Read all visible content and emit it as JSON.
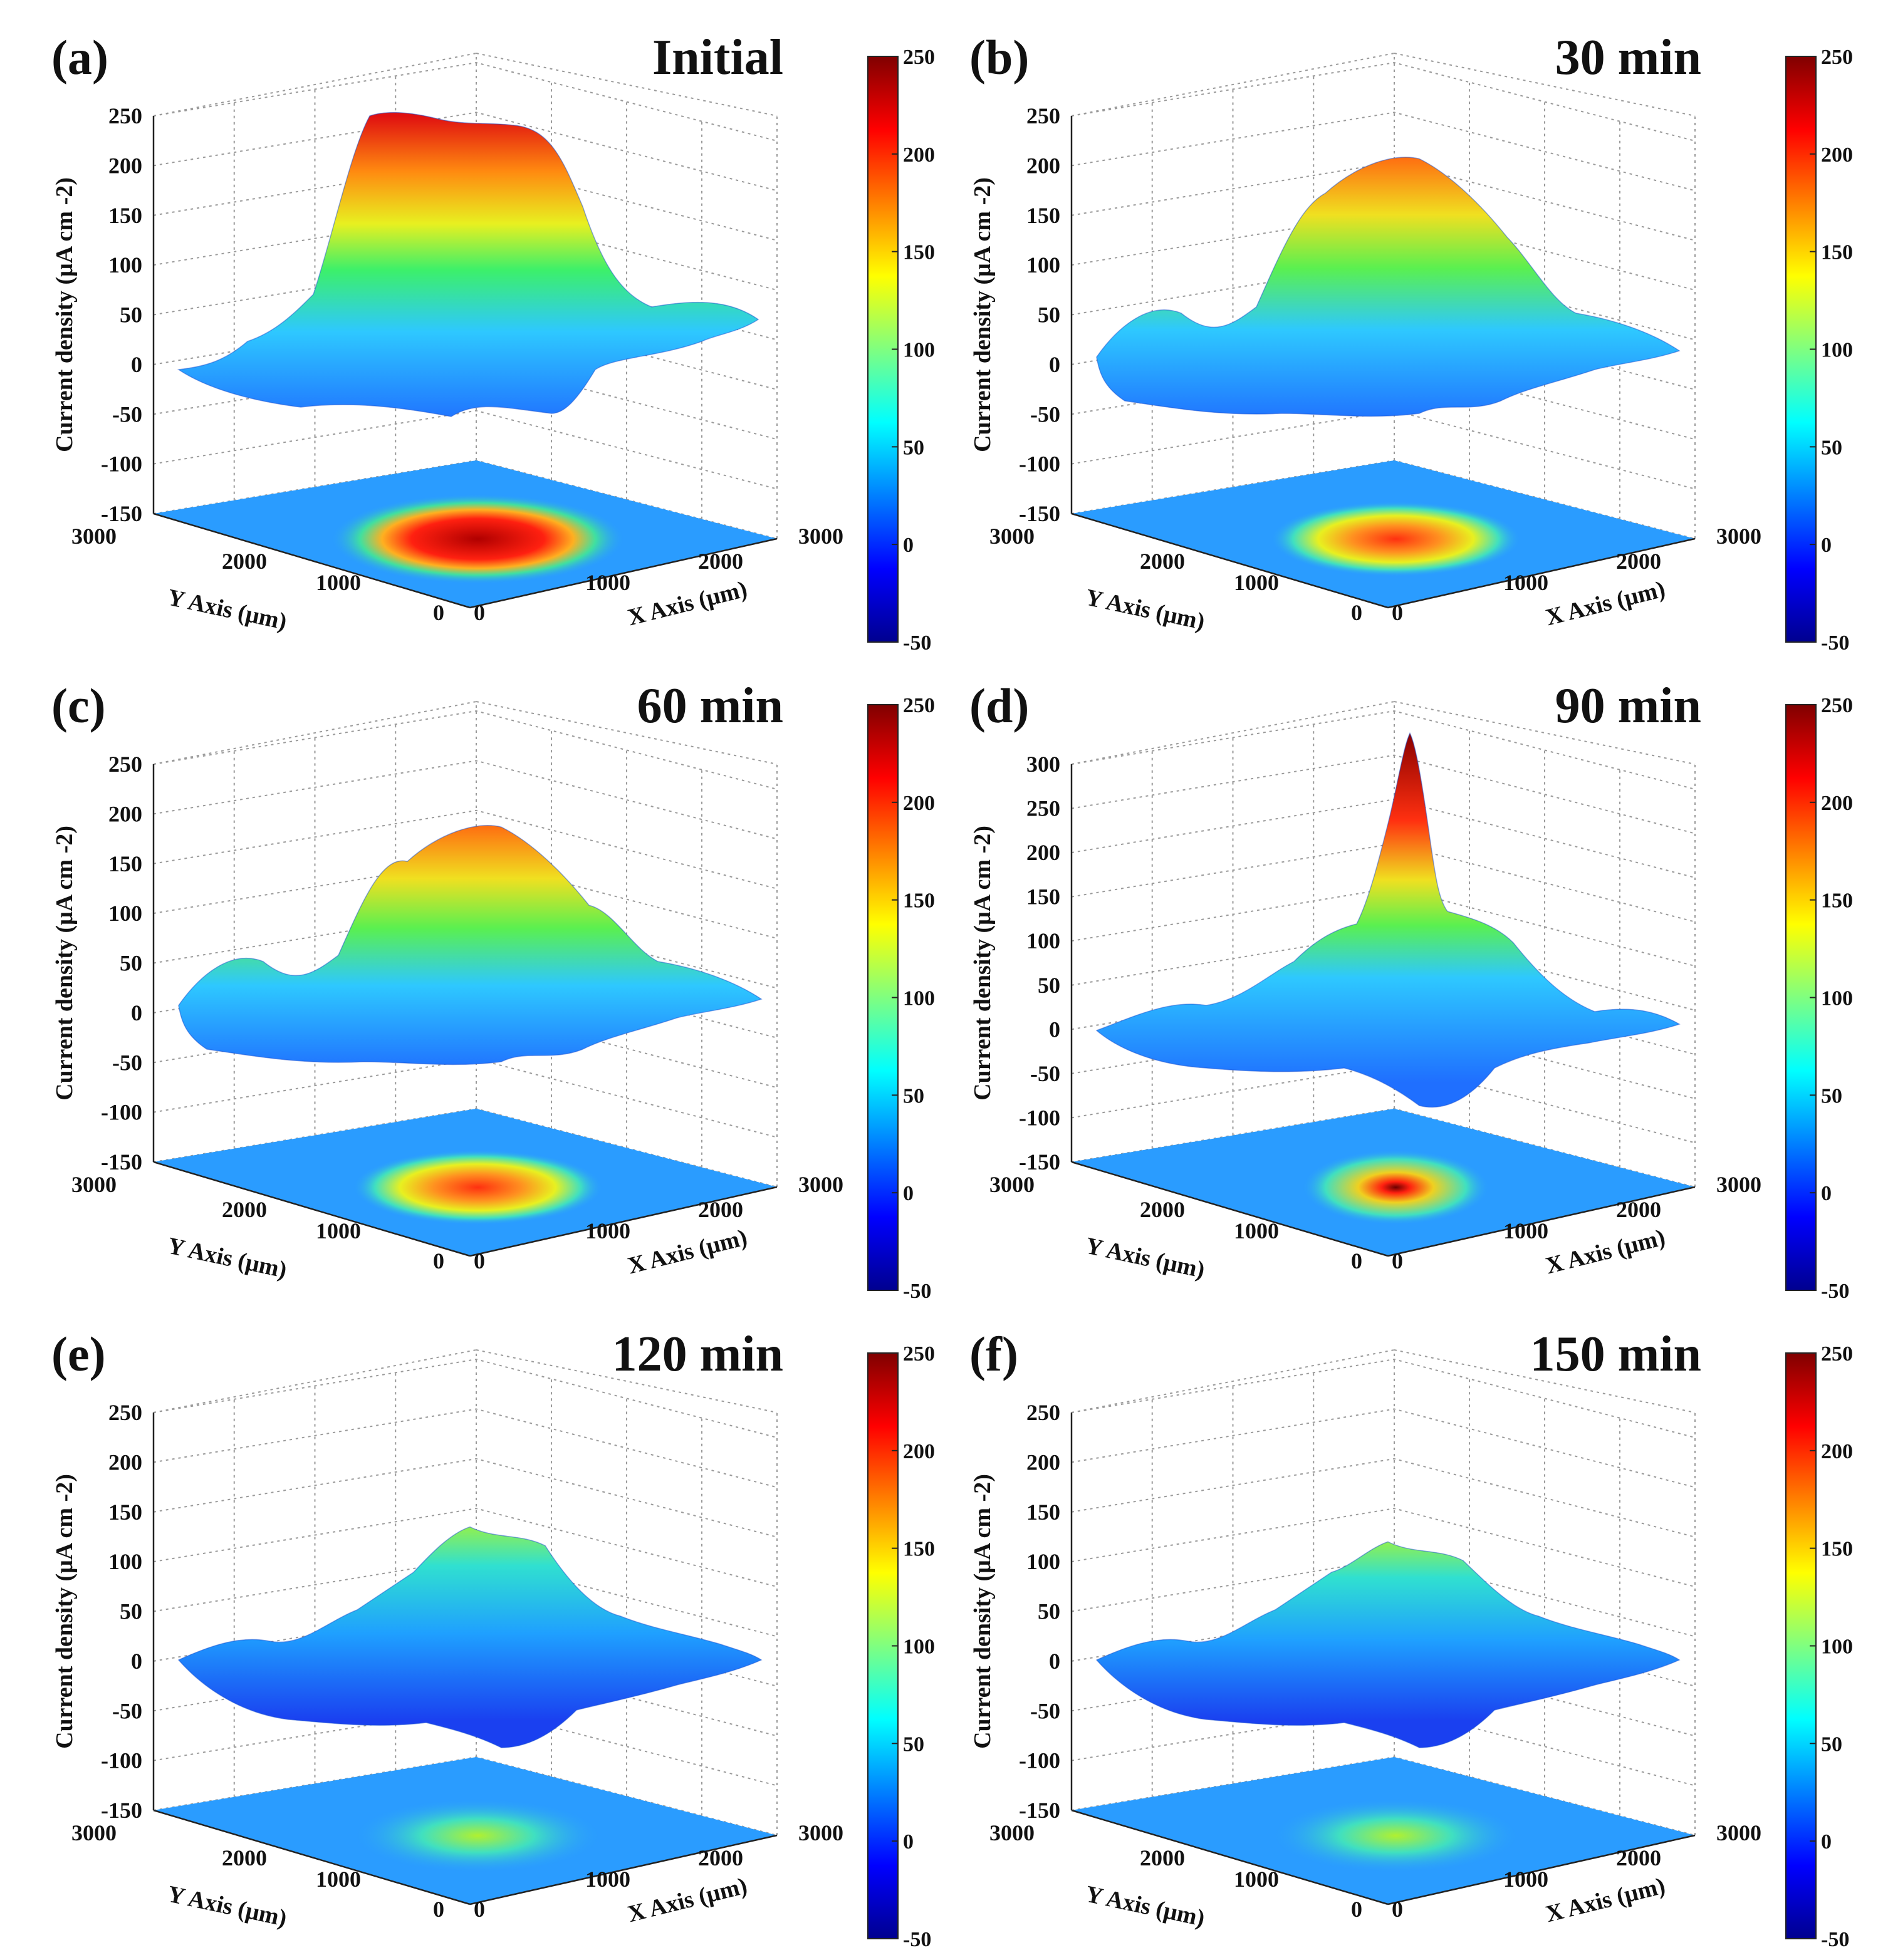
{
  "chart_data": [
    {
      "type": "surface3d",
      "panel_label": "(a)",
      "title": "Initial",
      "zlabel": "Current density (μA cm -2)",
      "ylabel": "Y Axis (μm)",
      "xlabel": "X Axis (μm)",
      "z_ticks": [
        "250",
        "200",
        "150",
        "100",
        "50",
        "0",
        "-50",
        "-100",
        "-150"
      ],
      "zlim": [
        -150,
        250
      ],
      "y_ticks": [
        "3000",
        "2000",
        "1000",
        "0"
      ],
      "x_ticks": [
        "0",
        "1000",
        "2000",
        "3000"
      ],
      "colorbar_ticks": [
        "250",
        "200",
        "150",
        "100",
        "50",
        "0",
        "-50"
      ],
      "colorbar_range": [
        -50,
        250
      ],
      "peak_current": 250,
      "shape": "plateau"
    },
    {
      "type": "surface3d",
      "panel_label": "(b)",
      "title": "30 min",
      "zlabel": "Current density (μA cm -2)",
      "ylabel": "Y Axis (μm)",
      "xlabel": "X Axis (μm)",
      "z_ticks": [
        "250",
        "200",
        "150",
        "100",
        "50",
        "0",
        "-50",
        "-100",
        "-150"
      ],
      "zlim": [
        -150,
        250
      ],
      "y_ticks": [
        "3000",
        "2000",
        "1000",
        "0"
      ],
      "x_ticks": [
        "0",
        "1000",
        "2000",
        "3000"
      ],
      "colorbar_ticks": [
        "250",
        "200",
        "150",
        "100",
        "50",
        "0",
        "-50"
      ],
      "colorbar_range": [
        -50,
        250
      ],
      "peak_current": 210,
      "shape": "dome"
    },
    {
      "type": "surface3d",
      "panel_label": "(c)",
      "title": "60 min",
      "zlabel": "Current density (μA cm -2)",
      "ylabel": "Y Axis (μm)",
      "xlabel": "X Axis (μm)",
      "z_ticks": [
        "250",
        "200",
        "150",
        "100",
        "50",
        "0",
        "-50",
        "-100",
        "-150"
      ],
      "zlim": [
        -150,
        250
      ],
      "y_ticks": [
        "3000",
        "2000",
        "1000",
        "0"
      ],
      "x_ticks": [
        "0",
        "1000",
        "2000",
        "3000"
      ],
      "colorbar_ticks": [
        "250",
        "200",
        "150",
        "100",
        "50",
        "0",
        "-50"
      ],
      "colorbar_range": [
        -50,
        250
      ],
      "peak_current": 190,
      "shape": "dome"
    },
    {
      "type": "surface3d",
      "panel_label": "(d)",
      "title": "90 min",
      "zlabel": "Current density (μA cm -2)",
      "ylabel": "Y Axis (μm)",
      "xlabel": "X Axis (μm)",
      "z_ticks": [
        "300",
        "250",
        "200",
        "150",
        "100",
        "50",
        "0",
        "-50",
        "-100",
        "-150"
      ],
      "zlim": [
        -150,
        300
      ],
      "y_ticks": [
        "3000",
        "2000",
        "1000",
        "0"
      ],
      "x_ticks": [
        "0",
        "1000",
        "2000",
        "3000"
      ],
      "colorbar_ticks": [
        "250",
        "200",
        "150",
        "100",
        "50",
        "0",
        "-50"
      ],
      "colorbar_range": [
        -50,
        250
      ],
      "peak_current": 335,
      "shape": "spike"
    },
    {
      "type": "surface3d",
      "panel_label": "(e)",
      "title": "120 min",
      "zlabel": "Current density (μA cm -2)",
      "ylabel": "Y Axis (μm)",
      "xlabel": "X Axis (μm)",
      "z_ticks": [
        "250",
        "200",
        "150",
        "100",
        "50",
        "0",
        "-50",
        "-100",
        "-150"
      ],
      "zlim": [
        -150,
        250
      ],
      "y_ticks": [
        "3000",
        "2000",
        "1000",
        "0"
      ],
      "x_ticks": [
        "0",
        "1000",
        "2000",
        "3000"
      ],
      "colorbar_ticks": [
        "250",
        "200",
        "150",
        "100",
        "50",
        "0",
        "-50"
      ],
      "colorbar_range": [
        -50,
        250
      ],
      "peak_current": 135,
      "shape": "low"
    },
    {
      "type": "surface3d",
      "panel_label": "(f)",
      "title": "150 min",
      "zlabel": "Current density (μA cm -2)",
      "ylabel": "Y Axis (μm)",
      "xlabel": "X Axis (μm)",
      "z_ticks": [
        "250",
        "200",
        "150",
        "100",
        "50",
        "0",
        "-50",
        "-100",
        "-150"
      ],
      "zlim": [
        -150,
        250
      ],
      "y_ticks": [
        "3000",
        "2000",
        "1000",
        "0"
      ],
      "x_ticks": [
        "0",
        "1000",
        "2000",
        "3000"
      ],
      "colorbar_ticks": [
        "250",
        "200",
        "150",
        "100",
        "50",
        "0",
        "-50"
      ],
      "colorbar_range": [
        -50,
        250
      ],
      "peak_current": 120,
      "shape": "low"
    }
  ]
}
